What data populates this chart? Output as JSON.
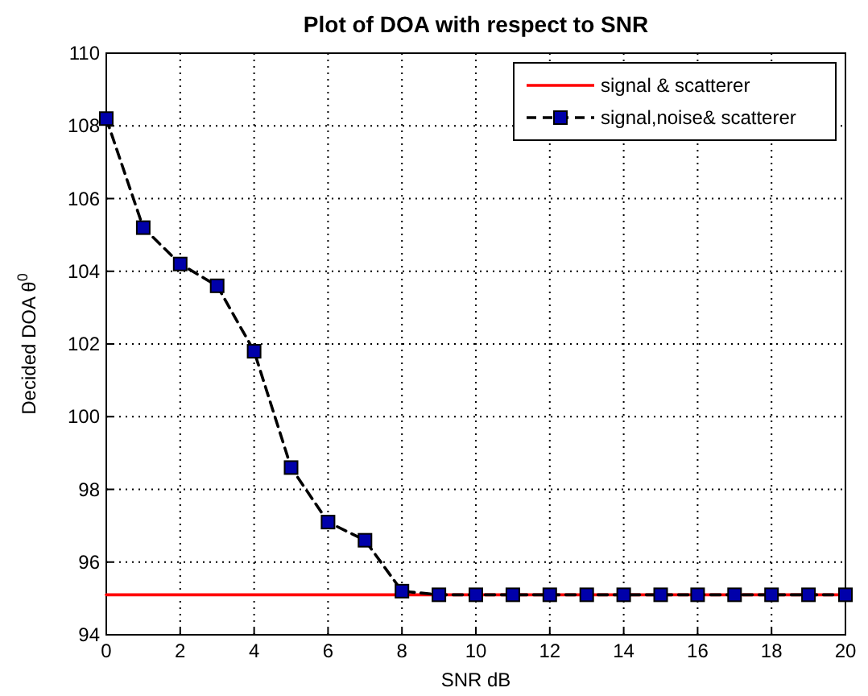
{
  "chart_data": {
    "type": "line",
    "title": "Plot of DOA with respect to SNR",
    "xlabel": "SNR dB",
    "ylabel": "Decided DOA   θ$^{0}$",
    "xlim": [
      0,
      20
    ],
    "xticks": [
      0,
      2,
      4,
      6,
      8,
      10,
      12,
      14,
      16,
      18,
      20
    ],
    "ylim": [
      94,
      110
    ],
    "yticks": [
      94,
      96,
      98,
      100,
      102,
      104,
      106,
      108,
      110
    ],
    "grid": true,
    "legend": "top right",
    "series": [
      {
        "name": "signal & scatterer",
        "color": "#ff0000",
        "x": [
          0,
          20
        ],
        "values": [
          95.1,
          95.1
        ],
        "marker": "none",
        "line_style": "solid"
      },
      {
        "name": "signal,noise& scatterer",
        "color": "#000000",
        "x": [
          0,
          1,
          2,
          3,
          4,
          5,
          6,
          7,
          8,
          9,
          10,
          11,
          12,
          13,
          14,
          15,
          16,
          17,
          18,
          19,
          20
        ],
        "values": [
          108.2,
          105.2,
          104.2,
          103.6,
          101.8,
          98.6,
          97.1,
          96.6,
          95.2,
          95.1,
          95.1,
          95.1,
          95.1,
          95.1,
          95.1,
          95.1,
          95.1,
          95.1,
          95.1,
          95.1,
          95.1
        ],
        "marker": "square",
        "line_style": "dashed"
      }
    ]
  }
}
